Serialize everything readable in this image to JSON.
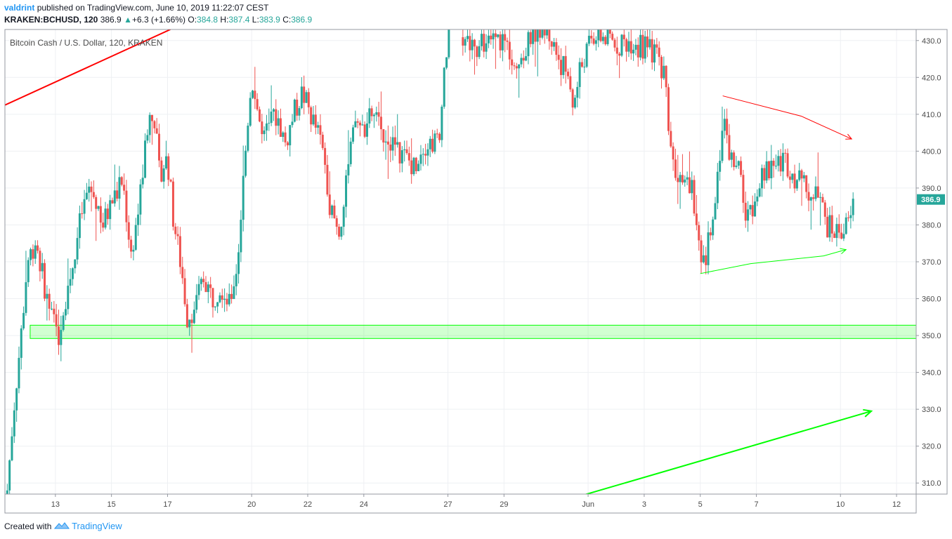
{
  "header": {
    "author": "valdrint",
    "published_text": "published on TradingView.com, June 10, 2019 11:22:07 CEST",
    "symbol": "KRAKEN:BCHUSD, 120",
    "last": "386.9",
    "change": "+6.3 (+1.66%)",
    "o_label": "O:",
    "o_value": "384.8",
    "h_label": "H:",
    "h_value": "387.4",
    "l_label": "L:",
    "l_value": "383.9",
    "c_label": "C:",
    "c_value": "386.9"
  },
  "legend": "Bitcoin Cash / U.S. Dollar, 120, KRAKEN",
  "price_tag": "386.9",
  "footer": {
    "created_with": "Created with",
    "brand": "TradingView"
  },
  "colors": {
    "up": "#26a69a",
    "down": "#ef5350",
    "trend_red": "#ff0000",
    "trend_green": "#00ff00",
    "grid": "#eef0f3"
  },
  "chart_data": {
    "type": "candlestick",
    "title": "Bitcoin Cash / U.S. Dollar, 120, KRAKEN",
    "interval": "120",
    "ylim": [
      307,
      433
    ],
    "y_ticks": [
      "430.0",
      "420.0",
      "410.0",
      "400.0",
      "390.0",
      "380.0",
      "370.0",
      "360.0",
      "350.0",
      "340.0",
      "330.0",
      "320.0",
      "310.0"
    ],
    "x_ticks": [
      "13",
      "15",
      "17",
      "20",
      "22",
      "24",
      "27",
      "29",
      "Jun",
      "3",
      "5",
      "7",
      "10",
      "12"
    ],
    "x_tick_pos": [
      0.5,
      2.5,
      4.5,
      7.5,
      9.5,
      11.5,
      14.5,
      16.5,
      19.5,
      21.5,
      23.5,
      25.5,
      28.5,
      30.5
    ],
    "x_domain": [
      -1.3,
      31.2
    ],
    "support_zone": [
      349.2,
      352.8
    ],
    "last_price": 386.9,
    "anchors": [
      [
        -1.3,
        300
      ],
      [
        -1.0,
        329
      ],
      [
        -0.7,
        352
      ],
      [
        -0.5,
        370
      ],
      [
        -0.2,
        376
      ],
      [
        0.0,
        368
      ],
      [
        0.3,
        356
      ],
      [
        0.6,
        350
      ],
      [
        0.9,
        362
      ],
      [
        1.2,
        372
      ],
      [
        1.4,
        382
      ],
      [
        1.7,
        390
      ],
      [
        2.0,
        386
      ],
      [
        2.2,
        380
      ],
      [
        2.5,
        386
      ],
      [
        2.9,
        392
      ],
      [
        3.2,
        372
      ],
      [
        3.5,
        386
      ],
      [
        3.8,
        408
      ],
      [
        4.0,
        412
      ],
      [
        4.2,
        394
      ],
      [
        4.5,
        398
      ],
      [
        4.7,
        382
      ],
      [
        5.0,
        368
      ],
      [
        5.2,
        355
      ],
      [
        5.5,
        358
      ],
      [
        5.8,
        366
      ],
      [
        6.1,
        360
      ],
      [
        6.4,
        364
      ],
      [
        6.7,
        358
      ],
      [
        7.0,
        370
      ],
      [
        7.2,
        392
      ],
      [
        7.4,
        412
      ],
      [
        7.5,
        420
      ],
      [
        7.7,
        412
      ],
      [
        7.9,
        402
      ],
      [
        8.1,
        406
      ],
      [
        8.4,
        410
      ],
      [
        8.7,
        402
      ],
      [
        9.0,
        410
      ],
      [
        9.3,
        416
      ],
      [
        9.6,
        410
      ],
      [
        9.9,
        404
      ],
      [
        10.1,
        398
      ],
      [
        10.3,
        385
      ],
      [
        10.6,
        378
      ],
      [
        10.8,
        386
      ],
      [
        11.0,
        398
      ],
      [
        11.2,
        408
      ],
      [
        11.5,
        406
      ],
      [
        11.8,
        410
      ],
      [
        12.1,
        406
      ],
      [
        12.4,
        404
      ],
      [
        12.7,
        400
      ],
      [
        13.0,
        398
      ],
      [
        13.3,
        396
      ],
      [
        13.6,
        402
      ],
      [
        14.2,
        403
      ],
      [
        14.3,
        418
      ],
      [
        14.5,
        430
      ],
      [
        15.0,
        431
      ],
      [
        15.5,
        428
      ],
      [
        16.0,
        430
      ],
      [
        16.5,
        430
      ],
      [
        17.0,
        424
      ],
      [
        17.3,
        427
      ],
      [
        17.5,
        433
      ],
      [
        18.0,
        433
      ],
      [
        18.2,
        430
      ],
      [
        18.4,
        426
      ],
      [
        18.8,
        420
      ],
      [
        19.0,
        412
      ],
      [
        19.2,
        422
      ],
      [
        19.5,
        428
      ],
      [
        19.8,
        432
      ],
      [
        20.0,
        431
      ],
      [
        20.5,
        429
      ],
      [
        21.0,
        430
      ],
      [
        21.5,
        428
      ],
      [
        21.8,
        427
      ],
      [
        22.0,
        425
      ],
      [
        22.2,
        422
      ],
      [
        22.35,
        410
      ],
      [
        22.5,
        398
      ],
      [
        22.7,
        394
      ],
      [
        22.9,
        390
      ],
      [
        23.2,
        392
      ],
      [
        23.35,
        382
      ],
      [
        23.5,
        368
      ],
      [
        23.7,
        370
      ],
      [
        23.9,
        382
      ],
      [
        24.1,
        392
      ],
      [
        24.3,
        408
      ],
      [
        24.5,
        400
      ],
      [
        24.7,
        396
      ],
      [
        24.9,
        394
      ],
      [
        25.0,
        390
      ],
      [
        25.15,
        380
      ],
      [
        25.25,
        382
      ],
      [
        25.5,
        390
      ],
      [
        25.8,
        393
      ],
      [
        26.0,
        396
      ],
      [
        26.2,
        396
      ],
      [
        26.5,
        398
      ],
      [
        26.8,
        394
      ],
      [
        27.0,
        392
      ],
      [
        27.2,
        390
      ],
      [
        27.5,
        388
      ],
      [
        27.8,
        386
      ],
      [
        28.0,
        380
      ],
      [
        28.3,
        378
      ],
      [
        28.6,
        379
      ],
      [
        28.8,
        380
      ],
      [
        29.0,
        386.9
      ]
    ],
    "gap": [
      14.6,
      15.0
    ],
    "trendlines": [
      {
        "name": "red-long",
        "color": "#ff0000",
        "points": [
          [
            -1.3,
            412.5
          ],
          [
            4.6,
            433
          ]
        ],
        "arrow": false,
        "width": 2
      },
      {
        "name": "red-upper",
        "color": "#ff0000",
        "points": [
          [
            24.3,
            415
          ],
          [
            27.1,
            409.5
          ],
          [
            28.9,
            403.3
          ]
        ],
        "arrow": true,
        "width": 1
      },
      {
        "name": "green-lower",
        "color": "#00ff00",
        "points": [
          [
            23.5,
            366.8
          ],
          [
            25.3,
            369.5
          ],
          [
            27.9,
            371.6
          ],
          [
            28.7,
            373.3
          ]
        ],
        "arrow": true,
        "width": 1
      },
      {
        "name": "green-long",
        "color": "#00ff00",
        "points": [
          [
            19.0,
            306
          ],
          [
            29.6,
            329.5
          ]
        ],
        "arrow": true,
        "width": 2
      }
    ]
  }
}
